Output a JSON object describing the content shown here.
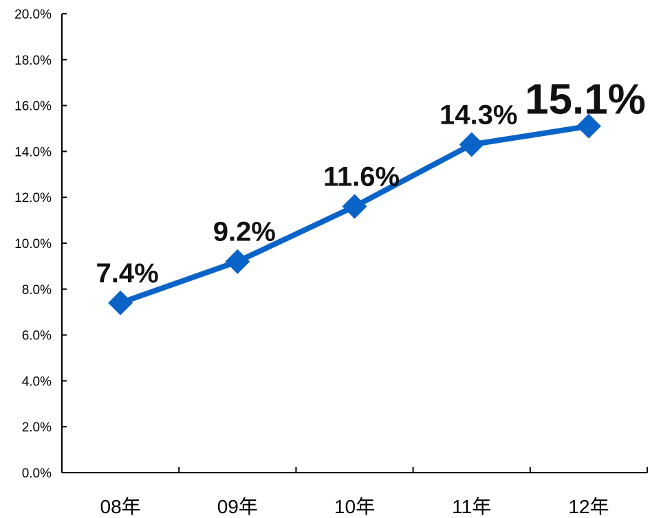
{
  "chart_data": {
    "type": "line",
    "categories": [
      "08年",
      "09年",
      "10年",
      "11年",
      "12年"
    ],
    "series": [
      {
        "values": [
          7.4,
          9.2,
          11.6,
          14.3,
          15.1
        ],
        "data_labels": [
          "7.4%",
          "9.2%",
          "11.6%",
          "14.3%",
          "15.1%"
        ],
        "color": "#0a64c8",
        "marker": "diamond"
      }
    ],
    "y_ticks": [
      "0.0%",
      "2.0%",
      "4.0%",
      "6.0%",
      "8.0%",
      "10.0%",
      "12.0%",
      "14.0%",
      "16.0%",
      "18.0%",
      "20.0%"
    ],
    "ylim": [
      0,
      20
    ],
    "title": "",
    "xlabel": "",
    "ylabel": "",
    "grid": false,
    "legend": "none"
  }
}
